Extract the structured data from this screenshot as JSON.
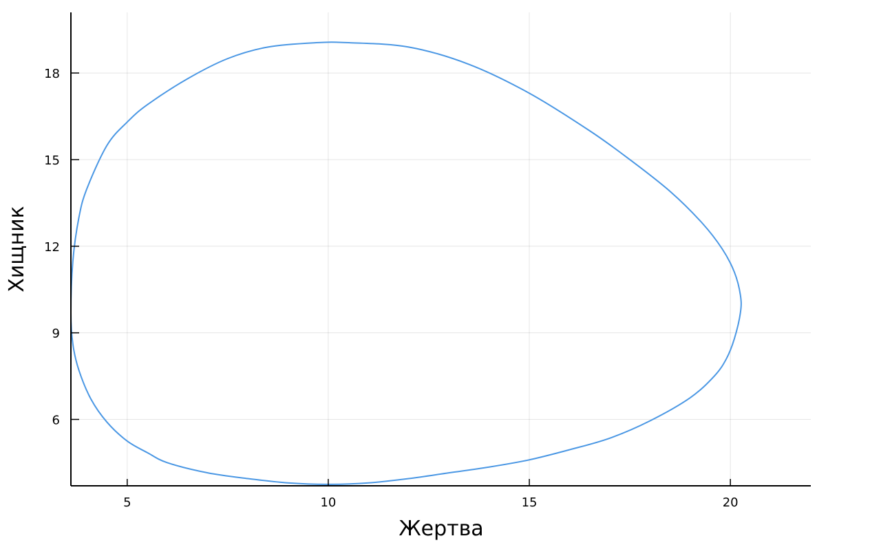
{
  "chart_data": {
    "type": "line",
    "title": "",
    "xlabel": "Жертва",
    "ylabel": "Хищник",
    "xlim": [
      3.6,
      22.0
    ],
    "ylim": [
      3.7,
      20.1
    ],
    "xticks": [
      5,
      10,
      15,
      20
    ],
    "yticks": [
      6,
      9,
      12,
      15,
      18
    ],
    "xtick_labels": [
      "5",
      "10",
      "15",
      "20"
    ],
    "ytick_labels": [
      "6",
      "9",
      "12",
      "15",
      "18"
    ],
    "grid": true,
    "legend": "none",
    "colors": {
      "series": "#4a97e4",
      "axis": "#000000"
    },
    "series": [
      {
        "x": [
          12.0,
          13.0,
          14.0,
          15.0,
          16.0,
          17.0,
          18.0,
          19.0,
          19.6,
          19.9,
          20.1,
          20.25,
          20.25,
          20.1,
          19.8,
          19.3,
          18.5,
          17.5,
          16.5,
          15.0,
          13.5,
          12.0,
          10.5,
          9.7,
          8.5,
          7.5,
          6.5,
          5.5,
          5.0,
          4.5,
          4.0,
          3.8,
          3.65,
          3.6,
          3.65,
          3.8,
          4.1,
          4.5,
          5.0,
          5.5,
          6.0,
          7.0,
          8.0,
          9.0,
          10.0,
          11.0,
          12.0
        ],
        "y": [
          3.95,
          4.15,
          4.35,
          4.6,
          4.95,
          5.35,
          5.95,
          6.75,
          7.5,
          8.1,
          8.8,
          9.7,
          10.3,
          11.1,
          11.9,
          12.8,
          13.9,
          15.0,
          16.0,
          17.3,
          18.3,
          18.9,
          19.05,
          19.05,
          18.9,
          18.5,
          17.8,
          16.9,
          16.3,
          15.5,
          14.0,
          13.0,
          11.5,
          9.7,
          8.6,
          7.7,
          6.7,
          5.9,
          5.25,
          4.85,
          4.5,
          4.15,
          3.95,
          3.8,
          3.75,
          3.8,
          3.95
        ]
      }
    ]
  }
}
